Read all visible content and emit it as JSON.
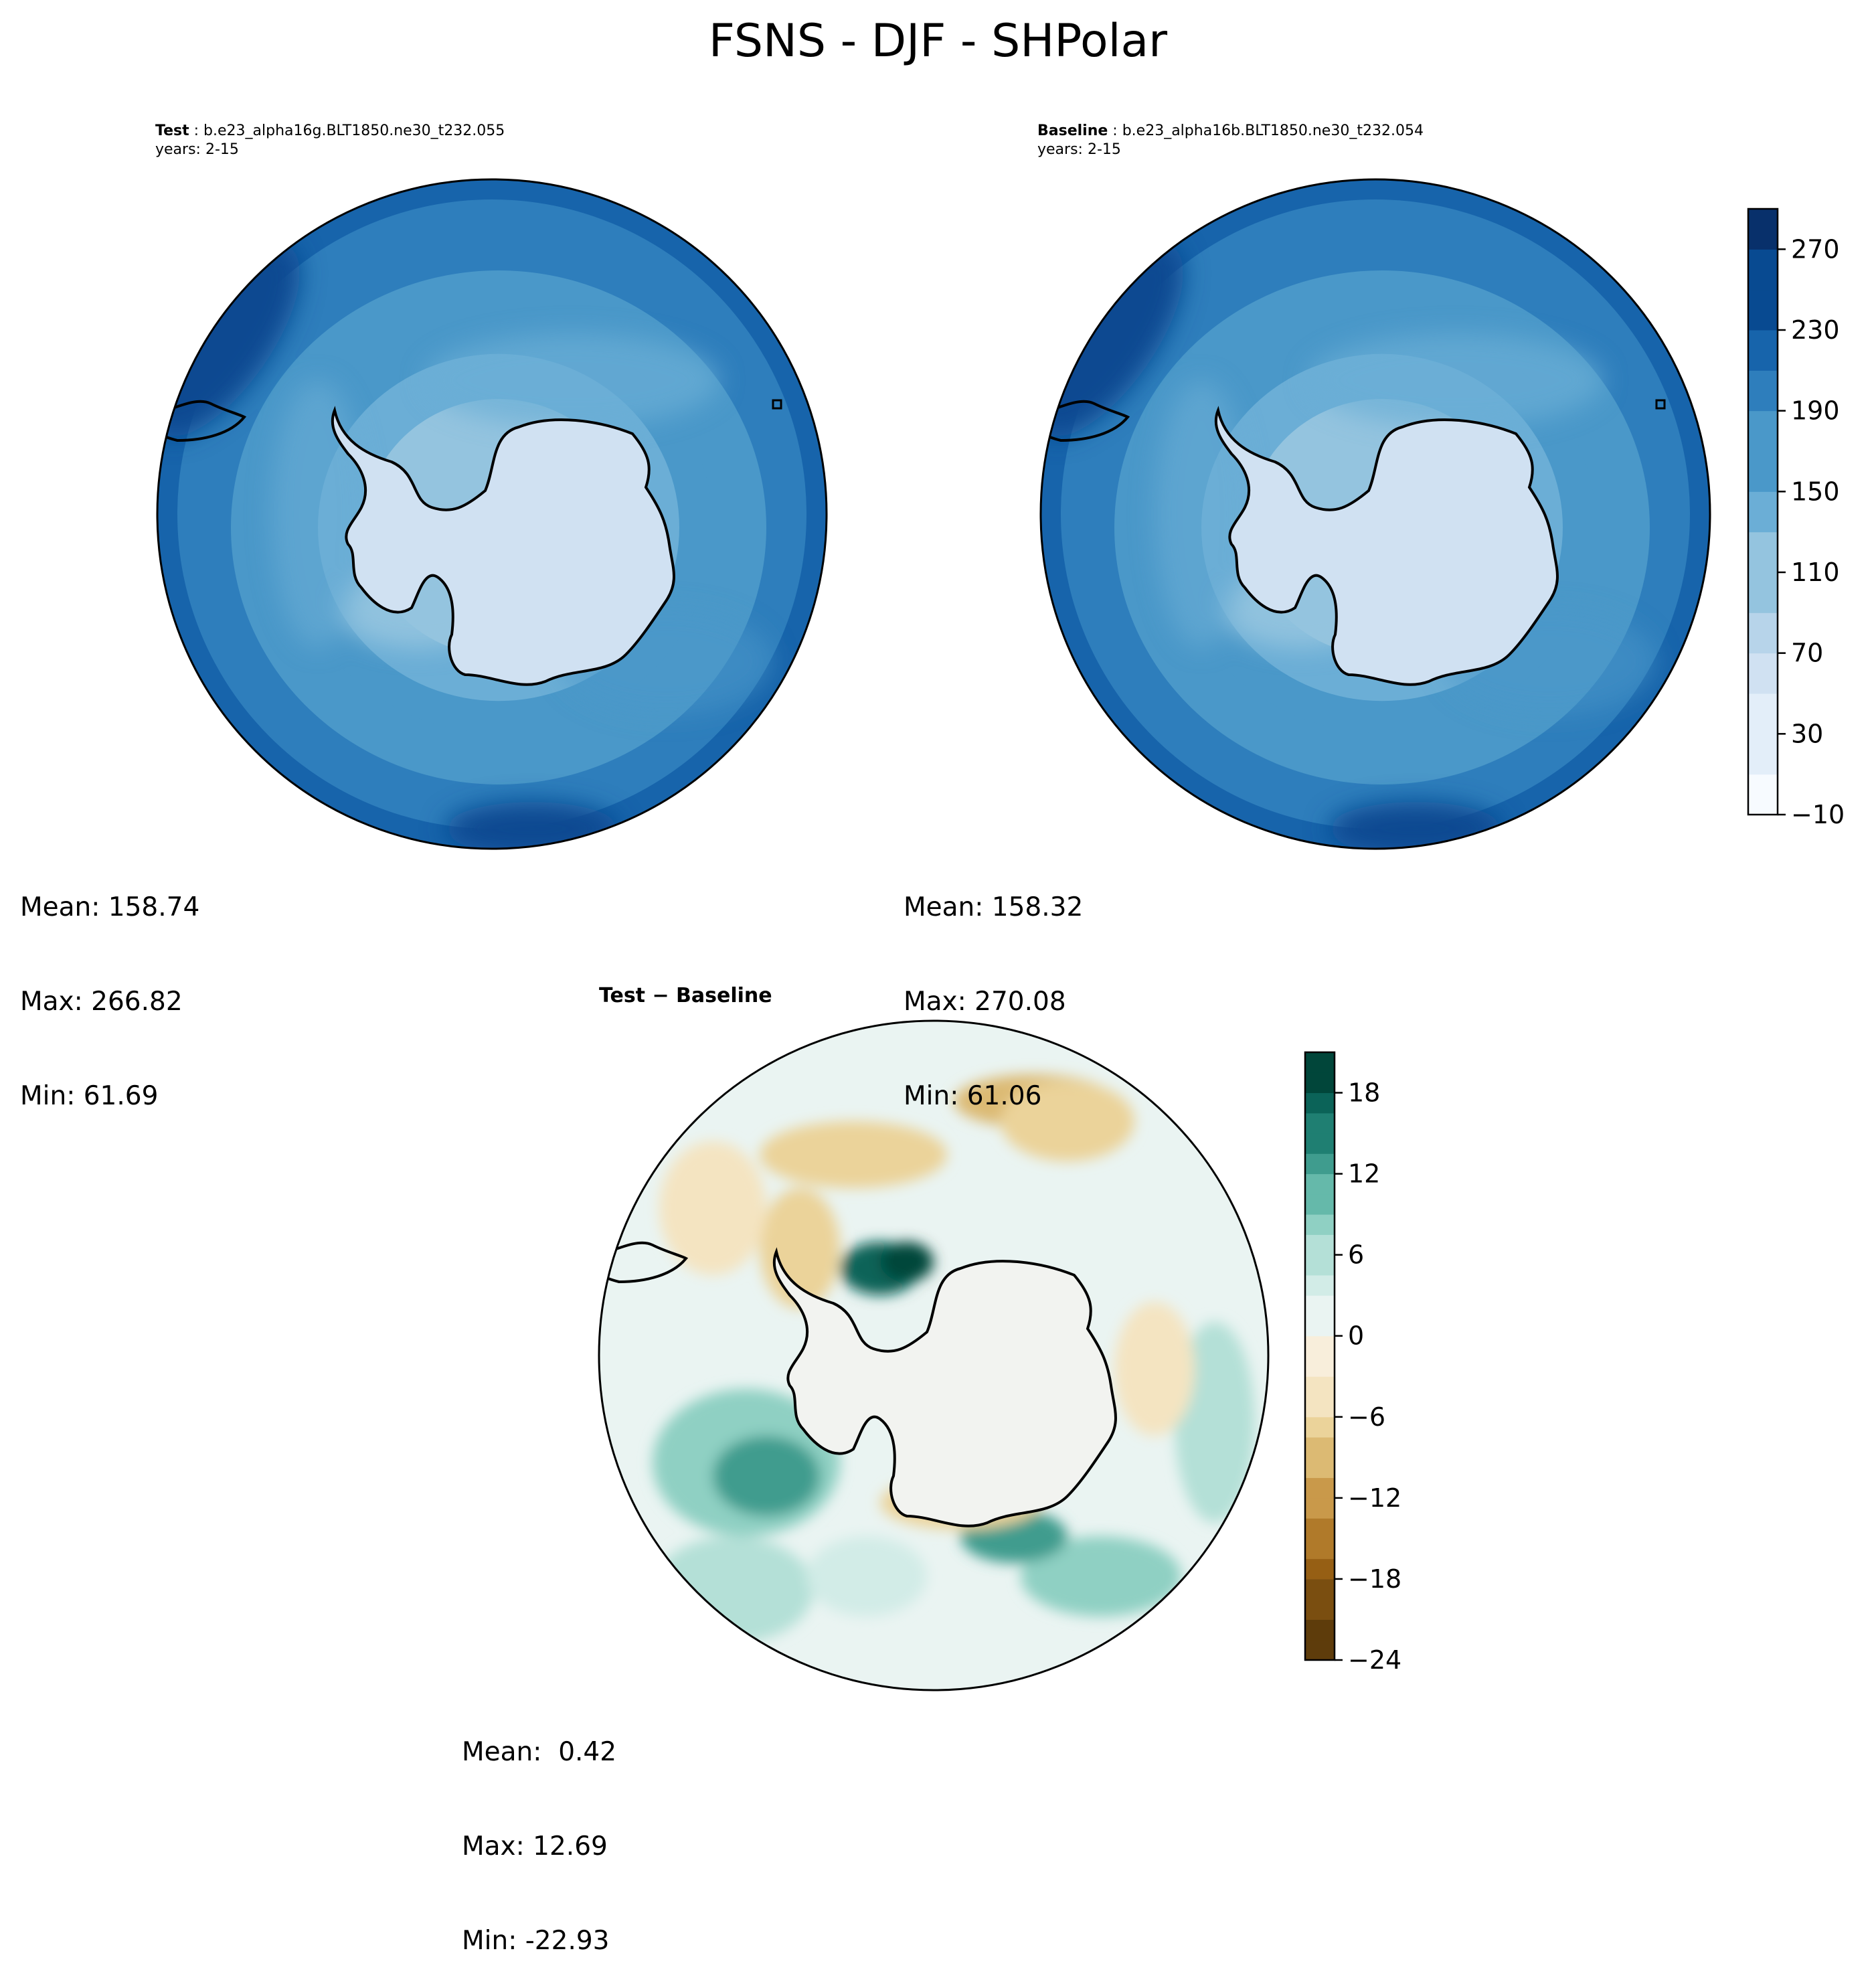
{
  "title": "FSNS - DJF - SHPolar",
  "panels": {
    "test": {
      "label": "Test",
      "case": "b.e23_alpha16g.BLT1850.ne30_t232.055",
      "years": "years: 2-15",
      "stats": {
        "mean": "Mean: 158.74",
        "max": "Max: 266.82",
        "min": "Min: 61.69"
      }
    },
    "baseline": {
      "label": "Baseline",
      "case": "b.e23_alpha16b.BLT1850.ne30_t232.054",
      "years": "years: 2-15",
      "stats": {
        "mean": "Mean: 158.32",
        "max": "Max: 270.08",
        "min": "Min: 61.06"
      }
    },
    "diff": {
      "label": "Test − Baseline",
      "stats": {
        "mean": "Mean:  0.42",
        "max": "Max: 12.69",
        "min": "Min: -22.93"
      }
    }
  },
  "chart_data": [
    {
      "type": "heatmap",
      "panel": "test",
      "projection": "south polar stereographic",
      "colormap": "Blues",
      "colorbar_ticks": [
        270,
        230,
        190,
        150,
        110,
        70,
        30,
        -10
      ],
      "colorbar_range": [
        -10,
        290
      ],
      "mean": 158.74,
      "max": 266.82,
      "min": 61.69
    },
    {
      "type": "heatmap",
      "panel": "baseline",
      "projection": "south polar stereographic",
      "colormap": "Blues",
      "colorbar_ticks": [
        270,
        230,
        190,
        150,
        110,
        70,
        30,
        -10
      ],
      "colorbar_range": [
        -10,
        290
      ],
      "mean": 158.32,
      "max": 270.08,
      "min": 61.06
    },
    {
      "type": "heatmap",
      "panel": "diff",
      "projection": "south polar stereographic",
      "colormap": "BrBG",
      "colorbar_ticks": [
        18,
        12,
        6,
        0,
        -6,
        -12,
        -18,
        -24
      ],
      "colorbar_range": [
        -24,
        21
      ],
      "mean": 0.42,
      "max": 12.69,
      "min": -22.93
    }
  ],
  "colors": {
    "blues": [
      "#f7fbff",
      "#e3eef9",
      "#d0e1f2",
      "#b7d4ea",
      "#94c4df",
      "#6baed6",
      "#4a98c9",
      "#2e7ebc",
      "#1764ab",
      "#084a91",
      "#08306b"
    ],
    "brbg_neg": [
      "#5e3c0b",
      "#7a4e10",
      "#965f14",
      "#b07a2a",
      "#c9994a",
      "#dcba73",
      "#ebd39a",
      "#f4e4c1",
      "#f8eedb"
    ],
    "brbg_pos": [
      "#eaf4f2",
      "#d2ece7",
      "#b4e0d7",
      "#8fd0c3",
      "#65b9aa",
      "#3f9c8e",
      "#1f7f72",
      "#0b6358",
      "#01463a"
    ]
  }
}
